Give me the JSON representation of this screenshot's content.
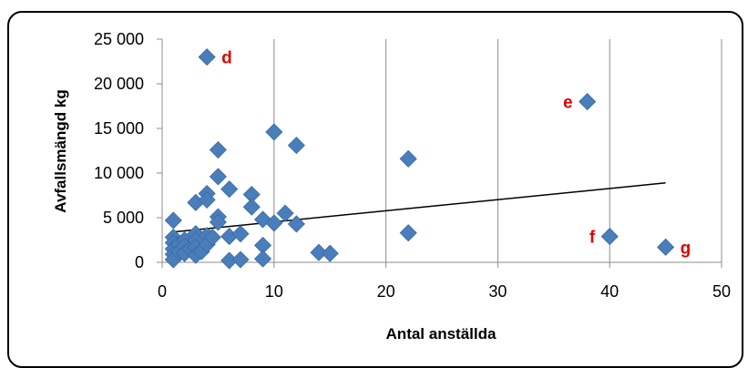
{
  "chart_data": {
    "type": "scatter",
    "xlabel": "Antal anställda",
    "ylabel": "Avfallsmängd kg",
    "xlim": [
      0,
      50
    ],
    "ylim": [
      0,
      25000
    ],
    "x_ticks": [
      0,
      10,
      20,
      30,
      40,
      50
    ],
    "y_ticks": [
      0,
      5000,
      10000,
      15000,
      20000,
      25000
    ],
    "x_tick_labels": [
      "0",
      "10",
      "20",
      "30",
      "40",
      "50"
    ],
    "y_tick_labels": [
      "0",
      "5 000",
      "10 000",
      "15 000",
      "20 000",
      "25 000"
    ],
    "grid": "vertical",
    "marker_color": "#4a7ebb",
    "annotation_color": "#e00000",
    "points": [
      {
        "x": 1,
        "y": 4700
      },
      {
        "x": 1,
        "y": 2800
      },
      {
        "x": 1,
        "y": 2200
      },
      {
        "x": 1,
        "y": 1500
      },
      {
        "x": 1,
        "y": 900
      },
      {
        "x": 1,
        "y": 300
      },
      {
        "x": 1.5,
        "y": 2000
      },
      {
        "x": 1.5,
        "y": 1200
      },
      {
        "x": 2,
        "y": 2500
      },
      {
        "x": 2,
        "y": 1800
      },
      {
        "x": 2,
        "y": 1000
      },
      {
        "x": 2.5,
        "y": 1500
      },
      {
        "x": 3,
        "y": 6700
      },
      {
        "x": 3,
        "y": 3200
      },
      {
        "x": 3,
        "y": 2500
      },
      {
        "x": 3,
        "y": 1700
      },
      {
        "x": 3,
        "y": 800
      },
      {
        "x": 3.5,
        "y": 1200
      },
      {
        "x": 4,
        "y": 23000
      },
      {
        "x": 4,
        "y": 7700
      },
      {
        "x": 4,
        "y": 7000
      },
      {
        "x": 4,
        "y": 3000
      },
      {
        "x": 4,
        "y": 2000
      },
      {
        "x": 4.5,
        "y": 2800
      },
      {
        "x": 5,
        "y": 12600
      },
      {
        "x": 5,
        "y": 9600
      },
      {
        "x": 5,
        "y": 5100
      },
      {
        "x": 5,
        "y": 4500
      },
      {
        "x": 6,
        "y": 8200
      },
      {
        "x": 6,
        "y": 2900
      },
      {
        "x": 6,
        "y": 200
      },
      {
        "x": 7,
        "y": 3200
      },
      {
        "x": 7,
        "y": 300
      },
      {
        "x": 8,
        "y": 7600
      },
      {
        "x": 8,
        "y": 6200
      },
      {
        "x": 9,
        "y": 4800
      },
      {
        "x": 9,
        "y": 1900
      },
      {
        "x": 9,
        "y": 400
      },
      {
        "x": 10,
        "y": 14600
      },
      {
        "x": 10,
        "y": 4400
      },
      {
        "x": 11,
        "y": 5500
      },
      {
        "x": 12,
        "y": 13100
      },
      {
        "x": 12,
        "y": 4300
      },
      {
        "x": 14,
        "y": 1100
      },
      {
        "x": 15,
        "y": 1000
      },
      {
        "x": 22,
        "y": 11600
      },
      {
        "x": 22,
        "y": 3300
      },
      {
        "x": 38,
        "y": 18000
      },
      {
        "x": 40,
        "y": 2900
      },
      {
        "x": 45,
        "y": 1700
      }
    ],
    "trendline": {
      "x": [
        1,
        45
      ],
      "y": [
        3400,
        8900
      ]
    },
    "annotations": [
      {
        "text": "d",
        "x": 4,
        "y": 23000,
        "side": "right"
      },
      {
        "text": "e",
        "x": 38,
        "y": 18000,
        "side": "left"
      },
      {
        "text": "f",
        "x": 40,
        "y": 2900,
        "side": "left"
      },
      {
        "text": "g",
        "x": 45,
        "y": 1700,
        "side": "right"
      }
    ]
  }
}
